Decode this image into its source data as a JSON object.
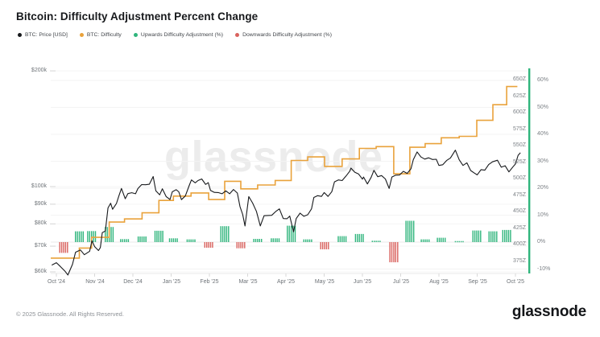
{
  "header": {
    "title": "Bitcoin: Difficulty Adjustment Percent Change"
  },
  "legend": {
    "items": [
      {
        "label": "BTC: Price [USD]",
        "color": "#17191c"
      },
      {
        "label": "BTC: Difficulty",
        "color": "#e9a23b"
      },
      {
        "label": "Upwards Difficulty Adjustment (%)",
        "color": "#2fb57c"
      },
      {
        "label": "Downwards Difficulty Adjustment (%)",
        "color": "#d9625e"
      }
    ]
  },
  "watermark": "glassnode",
  "footer": {
    "copyright": "© 2025 Glassnode. All Rights Reserved.",
    "brand": "glassnode"
  },
  "chart_data": {
    "type": "mixed",
    "title": "Bitcoin: Difficulty Adjustment Percent Change",
    "x_axis": {
      "unit": "month",
      "labels": [
        "Oct '24",
        "Nov '24",
        "Dec '24",
        "Jan '25",
        "Feb '25",
        "Mar '25",
        "Apr '25",
        "May '25",
        "Jun '25",
        "Jul '25",
        "Aug '25",
        "Sep '25",
        "Oct '25"
      ]
    },
    "price_axis": {
      "side": "left",
      "scale": "log",
      "unit": "USD",
      "ticks": [
        {
          "label": "$200k",
          "value": 200
        },
        {
          "label": "$100k",
          "value": 100
        },
        {
          "label": "$90k",
          "value": 90
        },
        {
          "label": "$80k",
          "value": 80
        },
        {
          "label": "$70k",
          "value": 70
        },
        {
          "label": "$60k",
          "value": 60
        }
      ]
    },
    "difficulty_axis": {
      "side": "right-inner",
      "unit": "Z (zettahashes)",
      "ticks": [
        {
          "label": "650Z",
          "value": 650
        },
        {
          "label": "625Z",
          "value": 625
        },
        {
          "label": "600Z",
          "value": 600
        },
        {
          "label": "575Z",
          "value": 575
        },
        {
          "label": "550Z",
          "value": 550
        },
        {
          "label": "525Z",
          "value": 525
        },
        {
          "label": "500Z",
          "value": 500
        },
        {
          "label": "475Z",
          "value": 475
        },
        {
          "label": "450Z",
          "value": 450
        },
        {
          "label": "425Z",
          "value": 425
        },
        {
          "label": "400Z",
          "value": 400
        },
        {
          "label": "375Z",
          "value": 375
        }
      ]
    },
    "pct_axis": {
      "side": "right-outer",
      "unit": "%",
      "axis_color": "#2fb57c",
      "ticks": [
        {
          "label": "60%",
          "value": 60
        },
        {
          "label": "50%",
          "value": 50
        },
        {
          "label": "40%",
          "value": 40
        },
        {
          "label": "30%",
          "value": 30
        },
        {
          "label": "20%",
          "value": 20
        },
        {
          "label": "10%",
          "value": 10
        },
        {
          "label": "0%",
          "value": 0
        },
        {
          "label": "-10%",
          "value": -10
        }
      ]
    },
    "series": [
      {
        "name": "BTC: Price [USD]",
        "type": "line",
        "color": "#17191c",
        "unit": "USD thousands",
        "t_unit": "months since Oct 2024",
        "points": [
          [
            -0.12,
            62.5
          ],
          [
            0,
            63.4
          ],
          [
            0.1,
            62
          ],
          [
            0.23,
            60.2
          ],
          [
            0.3,
            58.9
          ],
          [
            0.42,
            62.8
          ],
          [
            0.5,
            67.5
          ],
          [
            0.63,
            68.4
          ],
          [
            0.73,
            66.5
          ],
          [
            0.87,
            67.9
          ],
          [
            0.93,
            72.3
          ],
          [
            1,
            69.8
          ],
          [
            1.1,
            68.2
          ],
          [
            1.15,
            69.4
          ],
          [
            1.2,
            75.9
          ],
          [
            1.28,
            76.6
          ],
          [
            1.35,
            88
          ],
          [
            1.42,
            90.5
          ],
          [
            1.47,
            87.3
          ],
          [
            1.57,
            90.4
          ],
          [
            1.63,
            94.3
          ],
          [
            1.7,
            98.9
          ],
          [
            1.8,
            93
          ],
          [
            1.87,
            95.9
          ],
          [
            1.97,
            96.4
          ],
          [
            2.07,
            95.8
          ],
          [
            2.13,
            98.8
          ],
          [
            2.23,
            101.2
          ],
          [
            2.33,
            101.1
          ],
          [
            2.43,
            101.4
          ],
          [
            2.53,
            106.2
          ],
          [
            2.6,
            97.5
          ],
          [
            2.7,
            95.2
          ],
          [
            2.77,
            98.7
          ],
          [
            2.87,
            94.2
          ],
          [
            2.97,
            92.6
          ],
          [
            3.03,
            96.9
          ],
          [
            3.13,
            98.2
          ],
          [
            3.2,
            96.9
          ],
          [
            3.27,
            92.5
          ],
          [
            3.37,
            94.5
          ],
          [
            3.47,
            100.5
          ],
          [
            3.53,
            104.1
          ],
          [
            3.63,
            102.3
          ],
          [
            3.7,
            103.7
          ],
          [
            3.8,
            104.7
          ],
          [
            3.9,
            101.3
          ],
          [
            3.97,
            102.4
          ],
          [
            4.03,
            97.7
          ],
          [
            4.13,
            96.6
          ],
          [
            4.23,
            96.5
          ],
          [
            4.33,
            95.8
          ],
          [
            4.43,
            97.5
          ],
          [
            4.53,
            95.8
          ],
          [
            4.63,
            98.3
          ],
          [
            4.73,
            96.2
          ],
          [
            4.8,
            88.7
          ],
          [
            4.87,
            84.7
          ],
          [
            4.93,
            79
          ],
          [
            5.03,
            94.2
          ],
          [
            5.13,
            90.6
          ],
          [
            5.23,
            86.2
          ],
          [
            5.33,
            79
          ],
          [
            5.43,
            84
          ],
          [
            5.53,
            84.1
          ],
          [
            5.63,
            84.2
          ],
          [
            5.73,
            86.1
          ],
          [
            5.83,
            87.5
          ],
          [
            5.93,
            82.6
          ],
          [
            6.03,
            82.5
          ],
          [
            6.1,
            83.8
          ],
          [
            6.2,
            76.3
          ],
          [
            6.27,
            82.6
          ],
          [
            6.37,
            85.3
          ],
          [
            6.47,
            83.7
          ],
          [
            6.57,
            84.5
          ],
          [
            6.67,
            87.5
          ],
          [
            6.73,
            93.7
          ],
          [
            6.83,
            94.7
          ],
          [
            6.93,
            94.3
          ],
          [
            7,
            96.5
          ],
          [
            7.1,
            94.3
          ],
          [
            7.2,
            97
          ],
          [
            7.27,
            102.9
          ],
          [
            7.37,
            104.1
          ],
          [
            7.47,
            103.7
          ],
          [
            7.57,
            106.5
          ],
          [
            7.67,
            109.7
          ],
          [
            7.7,
            111.7
          ],
          [
            7.8,
            109
          ],
          [
            7.9,
            107.8
          ],
          [
            8,
            104.6
          ],
          [
            8.03,
            105.9
          ],
          [
            8.13,
            101.6
          ],
          [
            8.23,
            105.8
          ],
          [
            8.3,
            110.2
          ],
          [
            8.4,
            106.1
          ],
          [
            8.5,
            106.8
          ],
          [
            8.6,
            104.7
          ],
          [
            8.7,
            98.9
          ],
          [
            8.77,
            105.9
          ],
          [
            8.87,
            107.1
          ],
          [
            8.97,
            107.2
          ],
          [
            9.07,
            109.6
          ],
          [
            9.17,
            108.2
          ],
          [
            9.27,
            111.3
          ],
          [
            9.33,
            117.5
          ],
          [
            9.43,
            123.1
          ],
          [
            9.53,
            119.4
          ],
          [
            9.63,
            117.9
          ],
          [
            9.73,
            118.8
          ],
          [
            9.83,
            117.6
          ],
          [
            9.93,
            117.8
          ],
          [
            10,
            113.5
          ],
          [
            10.1,
            114
          ],
          [
            10.2,
            116.9
          ],
          [
            10.3,
            118.7
          ],
          [
            10.43,
            124.4
          ],
          [
            10.53,
            117.4
          ],
          [
            10.63,
            113.5
          ],
          [
            10.73,
            115.3
          ],
          [
            10.83,
            110.1
          ],
          [
            10.93,
            108.4
          ],
          [
            11,
            107.3
          ],
          [
            11.1,
            110.7
          ],
          [
            11.2,
            110.3
          ],
          [
            11.3,
            114.1
          ],
          [
            11.4,
            116
          ],
          [
            11.53,
            117.1
          ],
          [
            11.63,
            112.3
          ],
          [
            11.73,
            113.3
          ],
          [
            11.83,
            109.2
          ],
          [
            11.93,
            112.4
          ],
          [
            12,
            114.5
          ],
          [
            12.07,
            120.6
          ],
          [
            12.13,
            122.5
          ]
        ]
      },
      {
        "name": "BTC: Difficulty",
        "type": "step",
        "color": "#e9a23b",
        "unit": "Z (zettahashes)",
        "start_value": 380,
        "apply_from_index": 1,
        "end_t": 12.05
      },
      {
        "name": "Difficulty Adjustment (%)",
        "type": "bar",
        "up_color": "#2fb57c",
        "down_color": "#d9625e",
        "unit": "%",
        "points": [
          [
            0.19,
            -4.0
          ],
          [
            0.6,
            4.0
          ],
          [
            0.92,
            4.1
          ],
          [
            1.38,
            5.6
          ],
          [
            1.78,
            1.1
          ],
          [
            2.24,
            2.1
          ],
          [
            2.68,
            4.2
          ],
          [
            3.06,
            1.4
          ],
          [
            3.52,
            1.0
          ],
          [
            3.98,
            -2.1
          ],
          [
            4.4,
            5.9
          ],
          [
            4.82,
            -2.3
          ],
          [
            5.26,
            1.2
          ],
          [
            5.72,
            1.4
          ],
          [
            6.14,
            6.1
          ],
          [
            6.57,
            1.0
          ],
          [
            7.01,
            -2.7
          ],
          [
            7.47,
            2.2
          ],
          [
            7.92,
            3.0
          ],
          [
            8.36,
            0.5
          ],
          [
            8.82,
            -7.5
          ],
          [
            9.24,
            7.9
          ],
          [
            9.64,
            1.0
          ],
          [
            10.06,
            1.6
          ],
          [
            10.53,
            0.4
          ],
          [
            10.99,
            4.3
          ],
          [
            11.41,
            4.0
          ],
          [
            11.77,
            4.5
          ]
        ]
      }
    ],
    "layout_hints": {
      "grid": "horizontal-faint",
      "legend_position": "top-left",
      "price_range_visible": [
        57,
        210
      ],
      "pct_range_visible": [
        -13,
        63
      ],
      "difficulty_range_visible": [
        370,
        660
      ]
    }
  }
}
